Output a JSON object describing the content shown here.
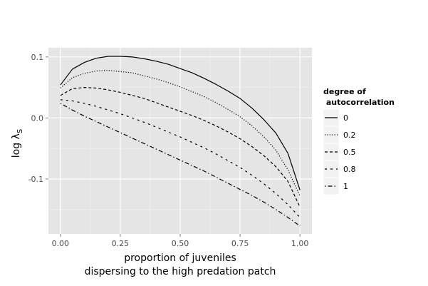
{
  "chart_data": {
    "type": "line",
    "title": "",
    "xlabel_line1": "proportion of juveniles",
    "xlabel_line2": "dispersing to the high predation patch",
    "ylabel": "log λS",
    "ylabel_main": "log λ",
    "ylabel_sub": "S",
    "xlim": [
      -0.05,
      1.05
    ],
    "ylim": [
      -0.19,
      0.115
    ],
    "x_ticks": [
      0.0,
      0.25,
      0.5,
      0.75,
      1.0
    ],
    "x_tick_labels": [
      "0.00",
      "0.25",
      "0.50",
      "0.75",
      "1.00"
    ],
    "y_ticks": [
      -0.1,
      0.0,
      0.1
    ],
    "y_tick_labels": [
      "-0.1",
      "0.0",
      "0.1"
    ],
    "grid": true,
    "legend_position": "right",
    "legend_title_line1": "degree of",
    "legend_title_line2": " autocorrelation",
    "x": [
      0.0,
      0.05,
      0.1,
      0.15,
      0.2,
      0.25,
      0.3,
      0.35,
      0.4,
      0.45,
      0.5,
      0.55,
      0.6,
      0.65,
      0.7,
      0.75,
      0.8,
      0.85,
      0.9,
      0.95,
      1.0
    ],
    "series": [
      {
        "name": "0",
        "dash": "solid",
        "values": [
          0.054,
          0.08,
          0.091,
          0.098,
          0.101,
          0.101,
          0.1,
          0.097,
          0.093,
          0.088,
          0.081,
          0.074,
          0.065,
          0.055,
          0.044,
          0.032,
          0.016,
          -0.003,
          -0.025,
          -0.058,
          -0.118
        ]
      },
      {
        "name": "0.2",
        "dash": "dotted",
        "values": [
          0.049,
          0.066,
          0.073,
          0.077,
          0.078,
          0.076,
          0.074,
          0.069,
          0.064,
          0.058,
          0.051,
          0.043,
          0.035,
          0.025,
          0.014,
          0.002,
          -0.013,
          -0.031,
          -0.053,
          -0.085,
          -0.128
        ]
      },
      {
        "name": "0.5",
        "dash": "dashed",
        "values": [
          0.037,
          0.048,
          0.05,
          0.049,
          0.046,
          0.042,
          0.037,
          0.032,
          0.025,
          0.018,
          0.011,
          0.004,
          -0.004,
          -0.013,
          -0.023,
          -0.034,
          -0.047,
          -0.062,
          -0.08,
          -0.104,
          -0.146
        ]
      },
      {
        "name": "0.8",
        "dash": "dash2",
        "values": [
          0.03,
          0.028,
          0.024,
          0.019,
          0.013,
          0.007,
          0.0,
          -0.007,
          -0.015,
          -0.023,
          -0.031,
          -0.04,
          -0.049,
          -0.059,
          -0.07,
          -0.081,
          -0.094,
          -0.108,
          -0.124,
          -0.142,
          -0.163
        ]
      },
      {
        "name": "1",
        "dash": "dotdash",
        "values": [
          0.024,
          0.013,
          0.003,
          -0.006,
          -0.015,
          -0.024,
          -0.033,
          -0.042,
          -0.051,
          -0.06,
          -0.069,
          -0.078,
          -0.087,
          -0.097,
          -0.107,
          -0.117,
          -0.127,
          -0.138,
          -0.15,
          -0.163,
          -0.177
        ]
      }
    ]
  }
}
